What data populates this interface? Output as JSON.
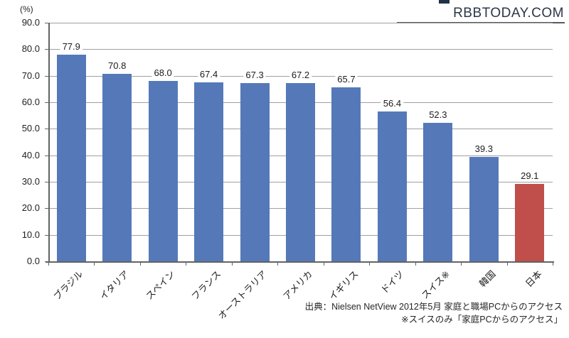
{
  "logo": {
    "text": "RBBTODAY.COM"
  },
  "chart_data": {
    "type": "bar",
    "title": "",
    "ylabel": "(%)",
    "xlabel": "",
    "categories": [
      "ブラジル",
      "イタリア",
      "スペイン",
      "フランス",
      "オーストラリア",
      "アメリカ",
      "イギリス",
      "ドイツ",
      "スイス※",
      "韓国",
      "日本"
    ],
    "values": [
      77.9,
      70.8,
      68.0,
      67.4,
      67.3,
      67.2,
      65.7,
      56.4,
      52.3,
      39.3,
      29.1
    ],
    "value_labels": [
      "77.9",
      "70.8",
      "68.0",
      "67.4",
      "67.3",
      "67.2",
      "65.7",
      "56.4",
      "52.3",
      "39.3",
      "29.1"
    ],
    "ylim": [
      0,
      90
    ],
    "ytick_interval": 10,
    "ytick_labels": [
      "0.0",
      "10.0",
      "20.0",
      "30.0",
      "40.0",
      "50.0",
      "60.0",
      "70.0",
      "80.0",
      "90.0"
    ],
    "grid": true,
    "legend": "none",
    "default_bar_color": "#5579b8",
    "highlight_bar": {
      "index": 10,
      "category": "日本",
      "color": "#c04e4b"
    }
  },
  "source": {
    "line1": "出典：Nielsen NetView 2012年5月 家庭と職場PCからのアクセス",
    "line2": "※スイスのみ「家庭PCからのアクセス」"
  },
  "colors": {
    "gridline": "#a0a0a0",
    "axis": "#636363",
    "text": "#1f1f1f",
    "logo_text": "#2c3747",
    "logo_underline": "#5a5a5a"
  }
}
